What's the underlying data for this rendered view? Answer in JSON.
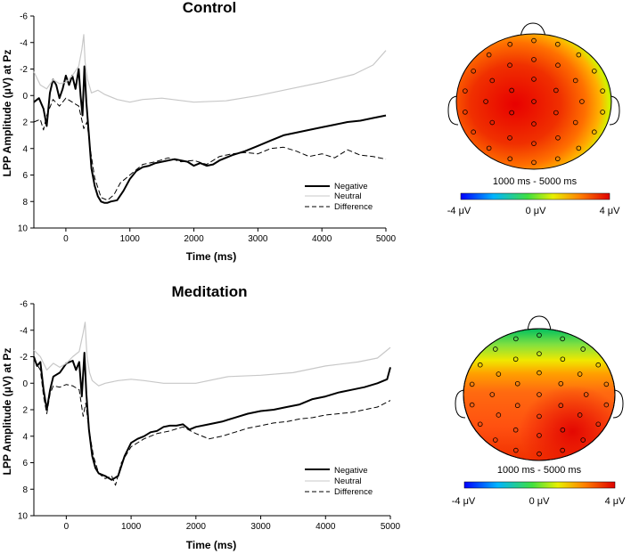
{
  "chart_data": [
    {
      "type": "line",
      "title": "Control",
      "xlabel": "Time (ms)",
      "ylabel": "LPP Amplitude (μV) at Pz",
      "xlim": [
        -500,
        5000
      ],
      "ylim": [
        10,
        -6
      ],
      "y_inverted": true,
      "x_ticks": [
        "0",
        "1000",
        "2000",
        "3000",
        "4000",
        "5000"
      ],
      "y_ticks": [
        "-6",
        "-4",
        "-2",
        "0",
        "2",
        "4",
        "6",
        "8",
        "10"
      ],
      "legend": [
        "Negative",
        "Neutral",
        "Difference"
      ],
      "legend_position": "lower-right",
      "series": [
        {
          "name": "Negative",
          "style": "solid-thick",
          "color": "#000000",
          "points": [
            [
              -500,
              0.5
            ],
            [
              -420,
              0.2
            ],
            [
              -350,
              1.0
            ],
            [
              -300,
              2.3
            ],
            [
              -250,
              -0.2
            ],
            [
              -200,
              -1.2
            ],
            [
              -150,
              -0.8
            ],
            [
              -100,
              0.2
            ],
            [
              -50,
              -0.5
            ],
            [
              0,
              -1.5
            ],
            [
              50,
              -0.8
            ],
            [
              100,
              -1.5
            ],
            [
              150,
              -0.5
            ],
            [
              200,
              -2.0
            ],
            [
              230,
              0.0
            ],
            [
              260,
              1.5
            ],
            [
              290,
              -2.2
            ],
            [
              320,
              0.5
            ],
            [
              360,
              3.0
            ],
            [
              400,
              5.5
            ],
            [
              450,
              6.8
            ],
            [
              500,
              7.6
            ],
            [
              550,
              8.0
            ],
            [
              600,
              8.1
            ],
            [
              650,
              8.1
            ],
            [
              700,
              8.0
            ],
            [
              800,
              7.9
            ],
            [
              900,
              7.2
            ],
            [
              1000,
              6.3
            ],
            [
              1100,
              5.7
            ],
            [
              1200,
              5.4
            ],
            [
              1300,
              5.3
            ],
            [
              1400,
              5.1
            ],
            [
              1500,
              5.0
            ],
            [
              1700,
              4.8
            ],
            [
              1900,
              5.0
            ],
            [
              2000,
              5.3
            ],
            [
              2100,
              5.1
            ],
            [
              2200,
              5.3
            ],
            [
              2300,
              5.2
            ],
            [
              2400,
              4.9
            ],
            [
              2600,
              4.5
            ],
            [
              2800,
              4.2
            ],
            [
              3000,
              3.8
            ],
            [
              3200,
              3.4
            ],
            [
              3400,
              3.0
            ],
            [
              3600,
              2.8
            ],
            [
              3800,
              2.6
            ],
            [
              4000,
              2.4
            ],
            [
              4200,
              2.2
            ],
            [
              4400,
              2.0
            ],
            [
              4600,
              1.9
            ],
            [
              4800,
              1.7
            ],
            [
              5000,
              1.5
            ]
          ]
        },
        {
          "name": "Neutral",
          "style": "solid-light",
          "color": "#c8c8c8",
          "points": [
            [
              -500,
              -1.8
            ],
            [
              -400,
              -0.8
            ],
            [
              -300,
              -0.5
            ],
            [
              -200,
              -1.2
            ],
            [
              -100,
              -0.9
            ],
            [
              0,
              -1.0
            ],
            [
              100,
              -1.5
            ],
            [
              200,
              -2.2
            ],
            [
              250,
              -3.5
            ],
            [
              280,
              -4.6
            ],
            [
              300,
              -2.5
            ],
            [
              340,
              -1.2
            ],
            [
              400,
              -0.2
            ],
            [
              500,
              -0.4
            ],
            [
              600,
              -0.1
            ],
            [
              800,
              0.3
            ],
            [
              1000,
              0.5
            ],
            [
              1200,
              0.3
            ],
            [
              1500,
              0.2
            ],
            [
              2000,
              0.5
            ],
            [
              2500,
              0.4
            ],
            [
              3000,
              0.0
            ],
            [
              3500,
              -0.5
            ],
            [
              4000,
              -1.0
            ],
            [
              4500,
              -1.6
            ],
            [
              4800,
              -2.3
            ],
            [
              5000,
              -3.4
            ]
          ]
        },
        {
          "name": "Difference",
          "style": "dashed",
          "color": "#000000",
          "points": [
            [
              -500,
              2.0
            ],
            [
              -400,
              1.8
            ],
            [
              -350,
              2.6
            ],
            [
              -300,
              1.5
            ],
            [
              -200,
              0.3
            ],
            [
              -100,
              0.8
            ],
            [
              0,
              0.2
            ],
            [
              100,
              0.5
            ],
            [
              200,
              0.8
            ],
            [
              280,
              2.5
            ],
            [
              330,
              2.0
            ],
            [
              380,
              4.0
            ],
            [
              450,
              6.2
            ],
            [
              550,
              7.7
            ],
            [
              650,
              7.9
            ],
            [
              750,
              7.5
            ],
            [
              850,
              6.6
            ],
            [
              1000,
              6.0
            ],
            [
              1200,
              5.2
            ],
            [
              1400,
              5.0
            ],
            [
              1600,
              4.7
            ],
            [
              1800,
              5.0
            ],
            [
              2000,
              4.9
            ],
            [
              2200,
              5.2
            ],
            [
              2400,
              4.6
            ],
            [
              2600,
              4.4
            ],
            [
              2800,
              4.3
            ],
            [
              3000,
              4.4
            ],
            [
              3200,
              4.0
            ],
            [
              3400,
              3.9
            ],
            [
              3600,
              4.2
            ],
            [
              3800,
              4.6
            ],
            [
              4000,
              4.4
            ],
            [
              4200,
              4.7
            ],
            [
              4400,
              4.1
            ],
            [
              4600,
              4.5
            ],
            [
              4800,
              4.6
            ],
            [
              5000,
              4.8
            ]
          ]
        }
      ]
    },
    {
      "type": "line",
      "title": "Meditation",
      "xlabel": "Time (ms)",
      "ylabel": "LPP Amplitude (μV) at Pz",
      "xlim": [
        -500,
        5000
      ],
      "ylim": [
        10,
        -6
      ],
      "y_inverted": true,
      "x_ticks": [
        "0",
        "1000",
        "2000",
        "3000",
        "4000",
        "5000"
      ],
      "y_ticks": [
        "-6",
        "-4",
        "-2",
        "0",
        "2",
        "4",
        "6",
        "8",
        "10"
      ],
      "legend": [
        "Negative",
        "Neutral",
        "Difference"
      ],
      "legend_position": "lower-right",
      "series": [
        {
          "name": "Negative",
          "style": "solid-thick",
          "color": "#000000",
          "points": [
            [
              -500,
              -2.0
            ],
            [
              -450,
              -1.3
            ],
            [
              -400,
              -1.6
            ],
            [
              -350,
              0.5
            ],
            [
              -300,
              2.0
            ],
            [
              -250,
              0.5
            ],
            [
              -200,
              -0.5
            ],
            [
              -100,
              -0.8
            ],
            [
              0,
              -1.5
            ],
            [
              100,
              -1.7
            ],
            [
              150,
              -1.0
            ],
            [
              200,
              -1.6
            ],
            [
              240,
              1.0
            ],
            [
              280,
              -2.3
            ],
            [
              310,
              0.8
            ],
            [
              350,
              3.5
            ],
            [
              400,
              5.5
            ],
            [
              450,
              6.4
            ],
            [
              500,
              6.8
            ],
            [
              600,
              7.0
            ],
            [
              700,
              7.3
            ],
            [
              800,
              7.0
            ],
            [
              900,
              5.5
            ],
            [
              1000,
              4.5
            ],
            [
              1100,
              4.2
            ],
            [
              1200,
              4.0
            ],
            [
              1300,
              3.7
            ],
            [
              1400,
              3.6
            ],
            [
              1500,
              3.3
            ],
            [
              1600,
              3.2
            ],
            [
              1700,
              3.2
            ],
            [
              1800,
              3.1
            ],
            [
              1900,
              3.5
            ],
            [
              2000,
              3.3
            ],
            [
              2200,
              3.1
            ],
            [
              2400,
              2.9
            ],
            [
              2600,
              2.6
            ],
            [
              2800,
              2.3
            ],
            [
              3000,
              2.1
            ],
            [
              3200,
              2.0
            ],
            [
              3400,
              1.8
            ],
            [
              3600,
              1.6
            ],
            [
              3800,
              1.2
            ],
            [
              4000,
              1.0
            ],
            [
              4200,
              0.7
            ],
            [
              4400,
              0.5
            ],
            [
              4600,
              0.3
            ],
            [
              4800,
              0.0
            ],
            [
              4950,
              -0.3
            ],
            [
              5000,
              -1.2
            ]
          ]
        },
        {
          "name": "Neutral",
          "style": "solid-light",
          "color": "#c8c8c8",
          "points": [
            [
              -500,
              -2.5
            ],
            [
              -400,
              -2.0
            ],
            [
              -300,
              -1.0
            ],
            [
              -200,
              -1.5
            ],
            [
              -100,
              -1.2
            ],
            [
              0,
              -1.5
            ],
            [
              100,
              -2.0
            ],
            [
              200,
              -2.4
            ],
            [
              260,
              -3.8
            ],
            [
              290,
              -4.6
            ],
            [
              320,
              -2.0
            ],
            [
              360,
              -0.8
            ],
            [
              400,
              -0.2
            ],
            [
              500,
              0.2
            ],
            [
              600,
              0.0
            ],
            [
              800,
              -0.2
            ],
            [
              1000,
              -0.3
            ],
            [
              1200,
              -0.2
            ],
            [
              1500,
              0.0
            ],
            [
              2000,
              0.0
            ],
            [
              2500,
              -0.5
            ],
            [
              3000,
              -0.6
            ],
            [
              3500,
              -0.8
            ],
            [
              4000,
              -1.3
            ],
            [
              4500,
              -1.6
            ],
            [
              4800,
              -1.9
            ],
            [
              5000,
              -2.7
            ]
          ]
        },
        {
          "name": "Difference",
          "style": "dashed",
          "color": "#000000",
          "points": [
            [
              -500,
              -1.8
            ],
            [
              -400,
              -1.0
            ],
            [
              -350,
              1.0
            ],
            [
              -300,
              2.3
            ],
            [
              -250,
              0.8
            ],
            [
              -200,
              0.2
            ],
            [
              -100,
              0.3
            ],
            [
              0,
              0.1
            ],
            [
              100,
              0.2
            ],
            [
              200,
              0.5
            ],
            [
              260,
              2.5
            ],
            [
              300,
              1.5
            ],
            [
              350,
              3.5
            ],
            [
              420,
              5.5
            ],
            [
              500,
              6.8
            ],
            [
              600,
              7.2
            ],
            [
              700,
              7.0
            ],
            [
              760,
              7.7
            ],
            [
              850,
              6.0
            ],
            [
              1000,
              4.8
            ],
            [
              1200,
              4.2
            ],
            [
              1400,
              3.8
            ],
            [
              1600,
              3.6
            ],
            [
              1800,
              3.3
            ],
            [
              2000,
              3.8
            ],
            [
              2200,
              4.2
            ],
            [
              2400,
              4.0
            ],
            [
              2600,
              3.7
            ],
            [
              2800,
              3.4
            ],
            [
              3000,
              3.2
            ],
            [
              3200,
              3.0
            ],
            [
              3400,
              2.9
            ],
            [
              3600,
              2.7
            ],
            [
              3800,
              2.6
            ],
            [
              4000,
              2.4
            ],
            [
              4200,
              2.3
            ],
            [
              4400,
              2.2
            ],
            [
              4600,
              2.0
            ],
            [
              4800,
              1.8
            ],
            [
              5000,
              1.3
            ]
          ]
        }
      ]
    },
    {
      "type": "heatmap",
      "title": "1000 ms - 5000 ms",
      "colorbar_labels": [
        "-4 μV",
        "0 μV",
        "4 μV"
      ],
      "colorbar_range": [
        -4,
        4
      ]
    },
    {
      "type": "heatmap",
      "title": "1000 ms - 5000 ms",
      "colorbar_labels": [
        "-4 μV",
        "0 μV",
        "4 μV"
      ],
      "colorbar_range": [
        -4,
        4
      ]
    }
  ]
}
